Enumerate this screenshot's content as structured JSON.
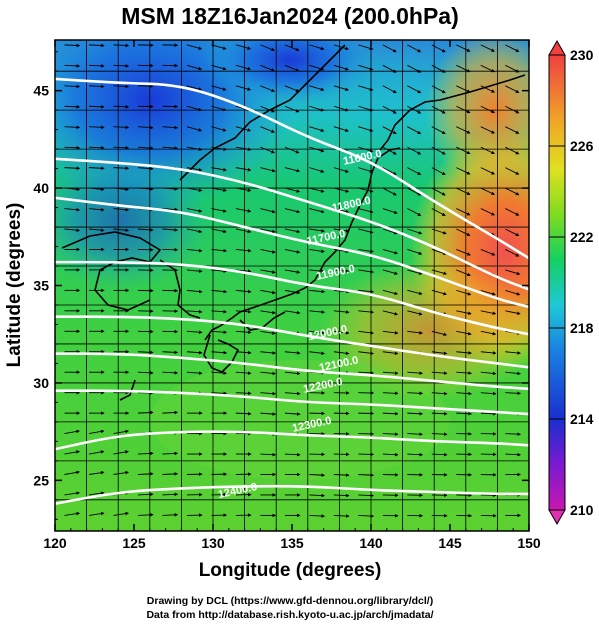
{
  "chart_data": {
    "type": "heatmap",
    "title": "MSM 18Z16Jan2024 (200.0hPa)",
    "xlabel": "Longitude (degrees)",
    "ylabel": "Latitude  (degrees)",
    "xlim": [
      120,
      150
    ],
    "ylim": [
      22.4,
      47.6
    ],
    "x_ticks": [
      "120",
      "125",
      "130",
      "135",
      "140",
      "145",
      "150"
    ],
    "y_ticks": [
      "25",
      "30",
      "35",
      "40",
      "45"
    ],
    "colorbar": {
      "range": [
        210,
        230
      ],
      "tick_labels": [
        "230",
        "226",
        "222",
        "218",
        "214",
        "210"
      ],
      "tick_values": [
        230,
        226,
        222,
        218,
        214,
        210
      ]
    },
    "contours": [
      {
        "label": "11600.0",
        "lat_at_lon": [
          [
            120,
            45.6
          ],
          [
            124,
            45.4
          ],
          [
            128,
            45.3
          ],
          [
            132,
            44.2
          ],
          [
            136,
            42.6
          ],
          [
            140,
            41.4
          ],
          [
            144,
            39.3
          ],
          [
            148,
            37.4
          ],
          [
            150,
            36.4
          ]
        ]
      },
      {
        "label": "11800.0",
        "lat_at_lon": [
          [
            120,
            41.5
          ],
          [
            124,
            41.3
          ],
          [
            128,
            41.0
          ],
          [
            132,
            40.3
          ],
          [
            136,
            39.3
          ],
          [
            140,
            38.3
          ],
          [
            144,
            37.0
          ],
          [
            148,
            35.4
          ],
          [
            150,
            34.8
          ]
        ]
      },
      {
        "label": "11700.0",
        "lat_at_lon": [
          [
            120,
            39.5
          ],
          [
            124,
            39.1
          ],
          [
            128,
            38.8
          ],
          [
            132,
            38.0
          ],
          [
            136,
            37.2
          ],
          [
            140,
            36.6
          ],
          [
            144,
            35.5
          ],
          [
            148,
            34.3
          ],
          [
            150,
            33.9
          ]
        ]
      },
      {
        "label": "11900.0",
        "lat_at_lon": [
          [
            120,
            36.2
          ],
          [
            124,
            36.2
          ],
          [
            128,
            36.1
          ],
          [
            132,
            35.7
          ],
          [
            136,
            35.0
          ],
          [
            140,
            34.6
          ],
          [
            144,
            33.6
          ],
          [
            148,
            32.8
          ],
          [
            150,
            32.5
          ]
        ]
      },
      {
        "label": "12000.0",
        "lat_at_lon": [
          [
            120,
            33.4
          ],
          [
            124,
            33.4
          ],
          [
            128,
            33.3
          ],
          [
            132,
            33.0
          ],
          [
            136,
            32.4
          ],
          [
            140,
            31.9
          ],
          [
            144,
            31.4
          ],
          [
            148,
            31.0
          ],
          [
            150,
            30.8
          ]
        ]
      },
      {
        "label": "12100.0",
        "lat_at_lon": [
          [
            120,
            31.5
          ],
          [
            124,
            31.5
          ],
          [
            128,
            31.3
          ],
          [
            132,
            31.0
          ],
          [
            136,
            30.6
          ],
          [
            140,
            30.4
          ],
          [
            144,
            30.1
          ],
          [
            148,
            29.8
          ],
          [
            150,
            29.7
          ]
        ]
      },
      {
        "label": "12200.0",
        "lat_at_lon": [
          [
            120,
            29.6
          ],
          [
            124,
            29.6
          ],
          [
            128,
            29.5
          ],
          [
            132,
            29.3
          ],
          [
            136,
            29.0
          ],
          [
            140,
            28.9
          ],
          [
            144,
            28.7
          ],
          [
            148,
            28.5
          ],
          [
            150,
            28.4
          ]
        ]
      },
      {
        "label": "12300.0",
        "lat_at_lon": [
          [
            120,
            26.6
          ],
          [
            124,
            27.3
          ],
          [
            128,
            27.5
          ],
          [
            132,
            27.5
          ],
          [
            136,
            27.3
          ],
          [
            140,
            27.2
          ],
          [
            144,
            27.0
          ],
          [
            148,
            26.9
          ],
          [
            150,
            26.8
          ]
        ]
      },
      {
        "label": "12400.0",
        "lat_at_lon": [
          [
            120,
            23.8
          ],
          [
            124,
            24.4
          ],
          [
            128,
            24.6
          ],
          [
            132,
            24.7
          ],
          [
            136,
            24.7
          ],
          [
            140,
            24.5
          ],
          [
            144,
            24.4
          ],
          [
            148,
            24.3
          ],
          [
            150,
            24.3
          ]
        ]
      }
    ],
    "contour_label_positions": [
      {
        "text": "11600.0",
        "lon": 139.5,
        "lat": 41.4
      },
      {
        "text": "11800.0",
        "lon": 138.8,
        "lat": 39.0
      },
      {
        "text": "11700.0",
        "lon": 137.2,
        "lat": 37.3
      },
      {
        "text": "11900.0",
        "lon": 137.8,
        "lat": 35.5
      },
      {
        "text": "12000.0",
        "lon": 137.3,
        "lat": 32.4
      },
      {
        "text": "12100.0",
        "lon": 138.0,
        "lat": 30.8
      },
      {
        "text": "12200.0",
        "lon": 137.0,
        "lat": 29.7
      },
      {
        "text": "12300.0",
        "lon": 136.3,
        "lat": 27.7
      },
      {
        "text": "12400.0",
        "lon": 131.6,
        "lat": 24.3
      }
    ],
    "grid": true,
    "vectors": "wind arrows, mostly eastward"
  },
  "footer": {
    "line1": "Drawing by DCL (https://www.gfd-dennou.org/library/dcl/)",
    "line2": "Data from http://database.rish.kyoto-u.ac.jp/arch/jmadata/"
  },
  "colors": {
    "colorbar": [
      "#e0409a",
      "#1a2fd0",
      "#1fb5d8",
      "#14d060",
      "#b8e020",
      "#f0d020",
      "#f06a30",
      "#f04a4a"
    ],
    "contour": "#ffffff",
    "arrow": "#000000"
  }
}
